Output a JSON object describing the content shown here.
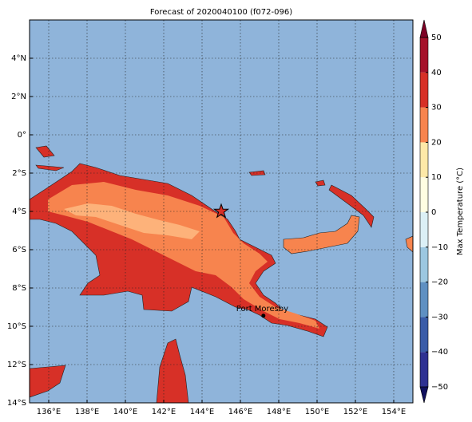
{
  "map": {
    "title": "Forecast of 2020040100 (f072-096)",
    "xlim": [
      135,
      155
    ],
    "ylim": [
      -14,
      6
    ],
    "xticks": [
      {
        "value": 136,
        "label": "136°E"
      },
      {
        "value": 138,
        "label": "138°E"
      },
      {
        "value": 140,
        "label": "140°E"
      },
      {
        "value": 142,
        "label": "142°E"
      },
      {
        "value": 144,
        "label": "144°E"
      },
      {
        "value": 146,
        "label": "146°E"
      },
      {
        "value": 148,
        "label": "148°E"
      },
      {
        "value": 150,
        "label": "150°E"
      },
      {
        "value": 152,
        "label": "152°E"
      },
      {
        "value": 154,
        "label": "154°E"
      }
    ],
    "yticks": [
      {
        "value": 4,
        "label": "4°N"
      },
      {
        "value": 2,
        "label": "2°N"
      },
      {
        "value": 0,
        "label": "0°"
      },
      {
        "value": -2,
        "label": "2°S"
      },
      {
        "value": -4,
        "label": "4°S"
      },
      {
        "value": -6,
        "label": "6°S"
      },
      {
        "value": -8,
        "label": "8°S"
      },
      {
        "value": -10,
        "label": "10°S"
      },
      {
        "value": -12,
        "label": "12°S"
      },
      {
        "value": -14,
        "label": "14°S"
      }
    ],
    "city": {
      "name": "Port Moresby",
      "lon": 147.2,
      "lat": -9.45
    },
    "marker": {
      "lon": 145,
      "lat": -4
    },
    "colorbar": {
      "label": "Max Temperature (°C)",
      "levels": [
        {
          "value": -50,
          "label": "−50"
        },
        {
          "value": -40,
          "label": "−40"
        },
        {
          "value": -30,
          "label": "−30"
        },
        {
          "value": -20,
          "label": "−20"
        },
        {
          "value": -10,
          "label": "−10"
        },
        {
          "value": 0,
          "label": "0"
        },
        {
          "value": 10,
          "label": "10"
        },
        {
          "value": 20,
          "label": "20"
        },
        {
          "value": 30,
          "label": "30"
        },
        {
          "value": 40,
          "label": "40"
        },
        {
          "value": 50,
          "label": "50"
        }
      ],
      "colors": [
        "#2e3192",
        "#3a5ca8",
        "#5f90c2",
        "#9cc7e0",
        "#dcf0f6",
        "#fffde2",
        "#fee9a8",
        "#f7844e",
        "#d73027",
        "#a5112a"
      ],
      "under": "#10105e",
      "over": "#7d0025"
    }
  }
}
